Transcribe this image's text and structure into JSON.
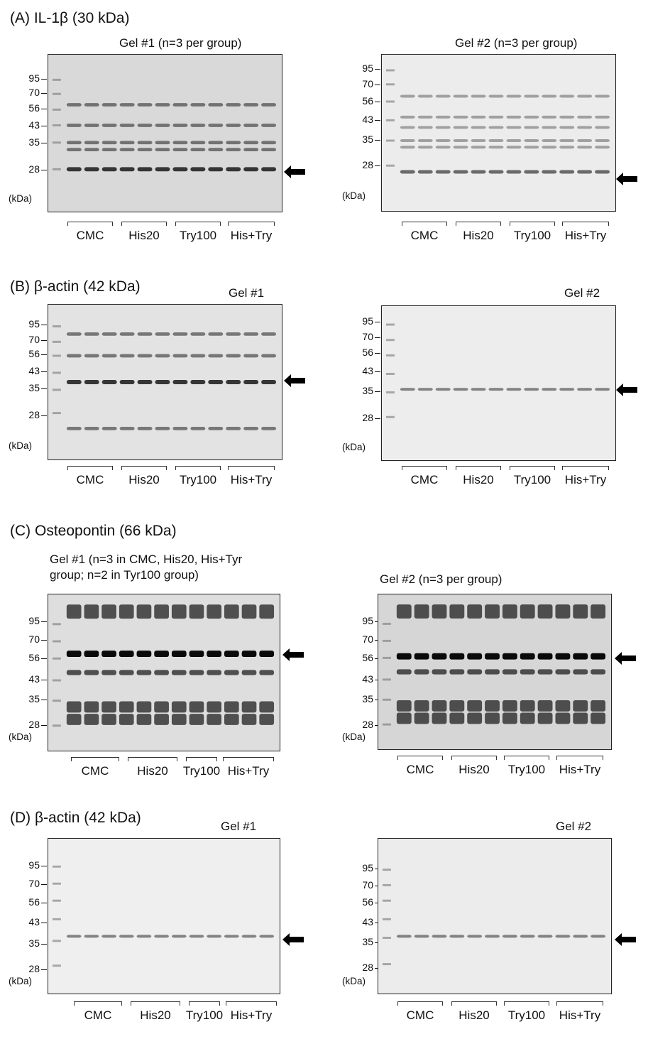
{
  "groups": [
    "CMC",
    "His20",
    "Try100",
    "His+Try"
  ],
  "kda_unit": "(kDa)",
  "panels": [
    {
      "id": "A",
      "title": "(A) IL-1β (30 kDa)",
      "gels": [
        {
          "label": "Gel #1 (n=3 per group)",
          "markers": [
            "95",
            "70",
            "56",
            "43",
            "35",
            "28"
          ],
          "lanes": 12,
          "bands": [
            "60",
            "43",
            "35",
            "33",
            "28"
          ],
          "target": "28",
          "style": "medium"
        },
        {
          "label": "Gel #2 (n=3 per group)",
          "markers": [
            "95",
            "70",
            "56",
            "43",
            "35",
            "28"
          ],
          "lanes": 12,
          "bands": [
            "60",
            "45",
            "40",
            "35",
            "33",
            "27"
          ],
          "target": "27",
          "style": "light"
        }
      ]
    },
    {
      "id": "B",
      "title": "(B) β-actin (42 kDa)",
      "gels": [
        {
          "label": "Gel #1",
          "markers": [
            "95",
            "70",
            "56",
            "43",
            "35",
            "28"
          ],
          "lanes": 12,
          "bands": [
            "80",
            "56",
            "38",
            "22"
          ],
          "target": "38",
          "style": "medium"
        },
        {
          "label": "Gel #2",
          "markers": [
            "95",
            "70",
            "56",
            "43",
            "35",
            "28"
          ],
          "lanes": 12,
          "bands": [
            "36"
          ],
          "target": "36",
          "style": "faint"
        }
      ]
    },
    {
      "id": "C",
      "title": "(C) Osteopontin (66 kDa)",
      "gels": [
        {
          "label": "Gel #1 (n=3 in CMC, His20, His+Tyr group; n=2 in Tyr100 group)",
          "label_line1": "Gel #1 (n=3 in CMC, His20, His+Tyr",
          "label_line2": "group; n=2 in Tyr100 group)",
          "markers": [
            "95",
            "70",
            "56",
            "43",
            "35",
            "28"
          ],
          "lanes": 12,
          "bands": [
            "110",
            "60",
            "48",
            "33",
            "30"
          ],
          "target": "60",
          "style": "dark"
        },
        {
          "label": "Gel #2 (n=3 per group)",
          "markers": [
            "95",
            "70",
            "56",
            "43",
            "35",
            "28"
          ],
          "lanes": 12,
          "bands": [
            "110",
            "58",
            "48",
            "33",
            "30"
          ],
          "target": "58",
          "style": "dark"
        }
      ]
    },
    {
      "id": "D",
      "title": "(D) β-actin (42 kDa)",
      "gels": [
        {
          "label": "Gel #1",
          "markers": [
            "95",
            "70",
            "56",
            "43",
            "35",
            "28"
          ],
          "lanes": 12,
          "bands": [
            "37"
          ],
          "target": "37",
          "style": "faint"
        },
        {
          "label": "Gel #2",
          "markers": [
            "95",
            "70",
            "56",
            "43",
            "35",
            "28"
          ],
          "lanes": 12,
          "bands": [
            "37"
          ],
          "target": "37",
          "style": "faint"
        }
      ]
    }
  ]
}
